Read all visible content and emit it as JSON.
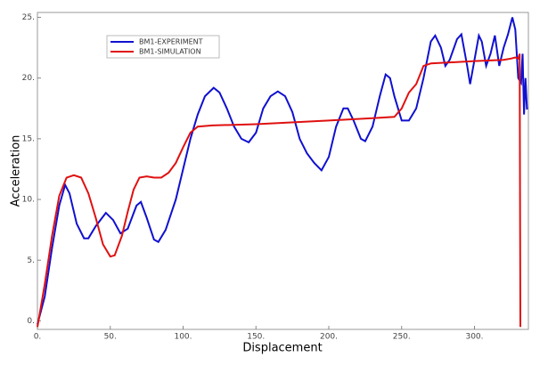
{
  "chart_data": {
    "type": "line",
    "x_label": "Displacement",
    "y_label": "Acceleration",
    "xlim": [
      0,
      337
    ],
    "ylim": [
      -0.7,
      25.4
    ],
    "xticks": [
      {
        "value": 0,
        "label": "0."
      },
      {
        "value": 50,
        "label": "50."
      },
      {
        "value": 100,
        "label": "100."
      },
      {
        "value": 150,
        "label": "150."
      },
      {
        "value": 200,
        "label": "200."
      },
      {
        "value": 250,
        "label": "250."
      },
      {
        "value": 300,
        "label": "300."
      }
    ],
    "yticks": [
      {
        "value": 0,
        "label": "0."
      },
      {
        "value": 5,
        "label": "5."
      },
      {
        "value": 10,
        "label": "10."
      },
      {
        "value": 15,
        "label": "15."
      },
      {
        "value": 20,
        "label": "20."
      },
      {
        "value": 25,
        "label": "25."
      }
    ],
    "legend": "upper left",
    "series": [
      {
        "name": "BM1-EXPERIMENT",
        "color": "#1010d0",
        "x": [
          0,
          5,
          10,
          15,
          19,
          22,
          27,
          32,
          35,
          40,
          47,
          52,
          57,
          62,
          68,
          71,
          75,
          80,
          83,
          88,
          95,
          100,
          105,
          110,
          115,
          121,
          125,
          130,
          135,
          140,
          145,
          150,
          155,
          160,
          165,
          170,
          175,
          180,
          185,
          190,
          195,
          200,
          205,
          210,
          213,
          217,
          222,
          225,
          230,
          235,
          239,
          242,
          245,
          250,
          255,
          260,
          265,
          270,
          273,
          277,
          280,
          283,
          288,
          291,
          295,
          297,
          300,
          303,
          305,
          308,
          311,
          314,
          317,
          320,
          323,
          326,
          328,
          330,
          332,
          333,
          334,
          335,
          336
        ],
        "values": [
          -0.3,
          2,
          6,
          9.5,
          11.2,
          10.5,
          8,
          6.8,
          6.8,
          7.8,
          8.9,
          8.3,
          7.2,
          7.6,
          9.5,
          9.8,
          8.5,
          6.7,
          6.5,
          7.5,
          10,
          12.5,
          15,
          17,
          18.5,
          19.2,
          18.8,
          17.5,
          16,
          15,
          14.7,
          15.5,
          17.5,
          18.5,
          18.9,
          18.5,
          17.2,
          15,
          13.8,
          13,
          12.4,
          13.5,
          16,
          17.5,
          17.5,
          16.5,
          15,
          14.8,
          16,
          18.5,
          20.3,
          20,
          18.5,
          16.5,
          16.5,
          17.5,
          20,
          23,
          23.5,
          22.5,
          21,
          21.5,
          23.2,
          23.6,
          21,
          19.5,
          21.5,
          23.5,
          23,
          21,
          22,
          23.5,
          21,
          22.5,
          23.6,
          25,
          24,
          20,
          19.6,
          22,
          17,
          20,
          17.4
        ]
      },
      {
        "name": "BM1-SIMULATION",
        "color": "#e01010",
        "x": [
          0,
          5,
          10,
          15,
          20,
          25,
          30,
          35,
          40,
          45,
          50,
          53,
          58,
          62,
          66,
          70,
          75,
          80,
          85,
          90,
          95,
          100,
          105,
          110,
          120,
          150,
          200,
          230,
          245,
          250,
          255,
          260,
          265,
          270,
          300,
          320,
          325,
          328,
          330,
          331,
          331.5
        ],
        "values": [
          -0.5,
          3,
          7,
          10.3,
          11.8,
          12,
          11.8,
          10.5,
          8.5,
          6.3,
          5.3,
          5.4,
          7,
          9,
          10.8,
          11.8,
          11.9,
          11.8,
          11.8,
          12.2,
          13,
          14.3,
          15.5,
          16,
          16.1,
          16.2,
          16.5,
          16.7,
          16.8,
          17.5,
          18.8,
          19.5,
          21,
          21.2,
          21.4,
          21.5,
          21.6,
          21.7,
          21.6,
          22,
          -0.5
        ]
      }
    ]
  }
}
